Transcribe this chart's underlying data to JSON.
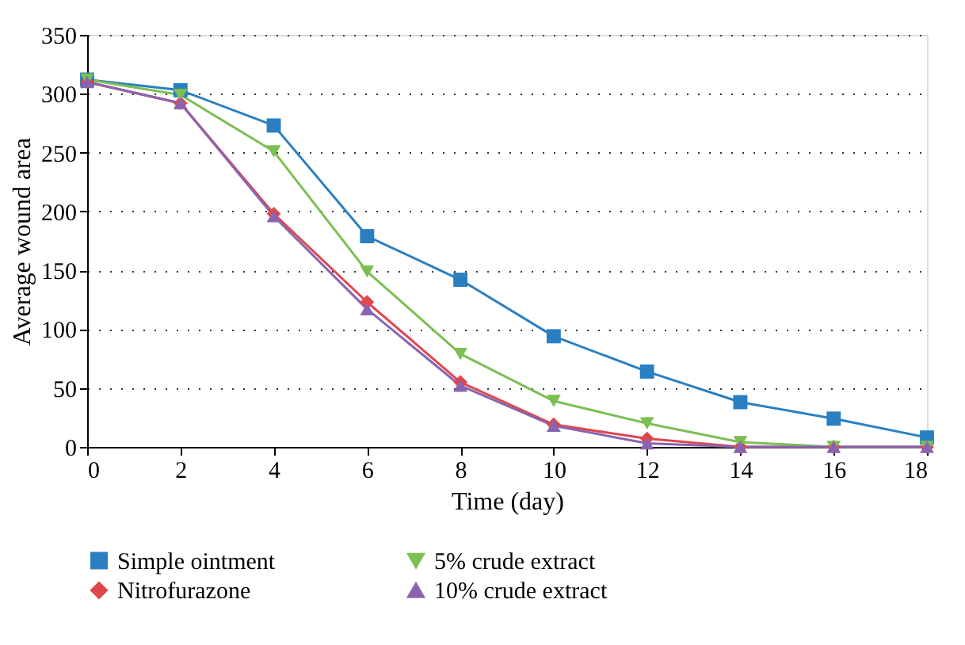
{
  "chart_data": {
    "type": "line",
    "xlabel": "Time (day)",
    "ylabel": "Average wound area",
    "x": [
      0,
      2,
      4,
      6,
      8,
      10,
      12,
      14,
      16,
      18
    ],
    "series": [
      {
        "name": "Simple ointment",
        "color": "#2a7fc1",
        "marker": "square",
        "values": [
          312,
          303,
          273,
          179,
          142,
          94,
          64,
          38,
          24,
          8
        ]
      },
      {
        "name": "Nitrofurazone",
        "color": "#e0474c",
        "marker": "diamond",
        "values": [
          310,
          292,
          198,
          123,
          55,
          19,
          7,
          0,
          0,
          0
        ]
      },
      {
        "name": "5% crude extract",
        "color": "#7cbf52",
        "marker": "triangle-down",
        "values": [
          312,
          299,
          251,
          149,
          79,
          39,
          20,
          4,
          0,
          0
        ]
      },
      {
        "name": "10% crude extract",
        "color": "#8a64b0",
        "marker": "triangle",
        "values": [
          310,
          292,
          196,
          117,
          52,
          18,
          3,
          0,
          0,
          0
        ]
      }
    ],
    "xlim": [
      0,
      18
    ],
    "xticks": [
      0,
      2,
      4,
      6,
      8,
      10,
      12,
      14,
      16,
      18
    ],
    "ylim": [
      0,
      350
    ],
    "yticks": [
      0,
      50,
      100,
      150,
      200,
      250,
      300,
      350
    ],
    "grid": "y",
    "legend": "bottom",
    "line_style": "solid"
  }
}
